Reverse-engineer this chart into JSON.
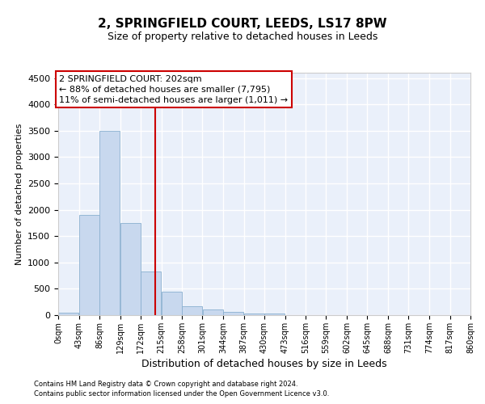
{
  "title": "2, SPRINGFIELD COURT, LEEDS, LS17 8PW",
  "subtitle": "Size of property relative to detached houses in Leeds",
  "xlabel": "Distribution of detached houses by size in Leeds",
  "ylabel": "Number of detached properties",
  "footnote1": "Contains HM Land Registry data © Crown copyright and database right 2024.",
  "footnote2": "Contains public sector information licensed under the Open Government Licence v3.0.",
  "annotation_line1": "2 SPRINGFIELD COURT: 202sqm",
  "annotation_line2": "← 88% of detached houses are smaller (7,795)",
  "annotation_line3": "11% of semi-detached houses are larger (1,011) →",
  "property_size": 202,
  "bar_edges": [
    0,
    43,
    86,
    129,
    172,
    215,
    258,
    301,
    344,
    387,
    430,
    473,
    516,
    559,
    602,
    645,
    688,
    731,
    774,
    817,
    860
  ],
  "bar_heights": [
    50,
    1900,
    3500,
    1750,
    830,
    450,
    165,
    100,
    55,
    35,
    35,
    0,
    0,
    0,
    0,
    0,
    0,
    0,
    0,
    0
  ],
  "bar_color": "#c8d8ee",
  "bar_edge_color": "#8ab0d0",
  "vline_color": "#cc0000",
  "vline_x": 202,
  "ylim": [
    0,
    4600
  ],
  "yticks": [
    0,
    500,
    1000,
    1500,
    2000,
    2500,
    3000,
    3500,
    4000,
    4500
  ],
  "background_color": "#eaf0fa",
  "grid_color": "#ffffff",
  "title_fontsize": 11,
  "subtitle_fontsize": 9,
  "xlabel_fontsize": 9,
  "ylabel_fontsize": 8,
  "tick_fontsize": 7,
  "annotation_fontsize": 8,
  "footnote_fontsize": 6
}
